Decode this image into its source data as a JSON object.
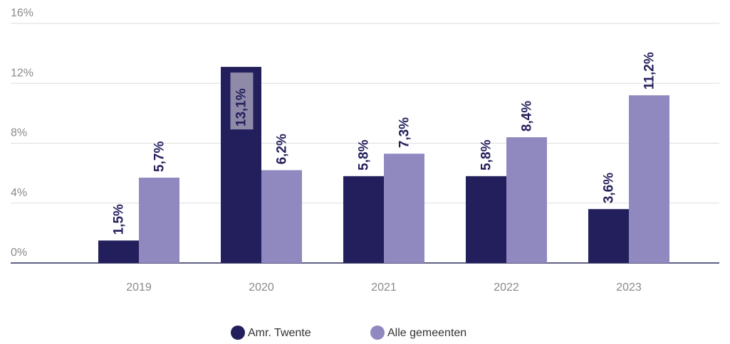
{
  "chart_data": {
    "type": "bar",
    "categories": [
      "2019",
      "2020",
      "2021",
      "2022",
      "2023"
    ],
    "series": [
      {
        "name": "Amr. Twente",
        "color": "#231f5c",
        "values": [
          1.5,
          13.1,
          5.8,
          5.8,
          3.6
        ],
        "value_labels": [
          "1,5%",
          "13,1%",
          "5,8%",
          "5,8%",
          "3,6%"
        ]
      },
      {
        "name": "Alle gemeenten",
        "color": "#9089c0",
        "values": [
          5.7,
          6.2,
          7.3,
          8.4,
          11.2
        ],
        "value_labels": [
          "5,7%",
          "6,2%",
          "7,3%",
          "8,4%",
          "11,2%"
        ]
      }
    ],
    "ylim": [
      0,
      16
    ],
    "yticks": [
      {
        "value": 0,
        "label": "0%"
      },
      {
        "value": 4,
        "label": "4%"
      },
      {
        "value": 8,
        "label": "8%"
      },
      {
        "value": 12,
        "label": "12%"
      },
      {
        "value": 16,
        "label": "16%"
      }
    ],
    "grid": true,
    "legend": "bottom"
  }
}
